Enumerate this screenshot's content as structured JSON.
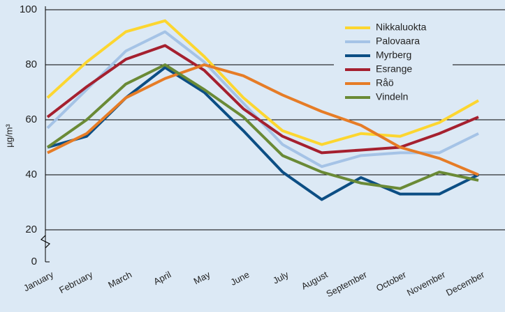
{
  "chart_data": {
    "type": "line",
    "y_label": "µg/m³",
    "categories": [
      "January",
      "February",
      "March",
      "April",
      "May",
      "June",
      "July",
      "August",
      "September",
      "October",
      "November",
      "December"
    ],
    "series": [
      {
        "name": "Nikkaluokta",
        "color": "#fcd630",
        "values": [
          68,
          81,
          92,
          96,
          83,
          68,
          56,
          51,
          55,
          54,
          59,
          67
        ]
      },
      {
        "name": "Palovaara",
        "color": "#a5c3e6",
        "values": [
          57,
          71,
          85,
          92,
          81,
          66,
          51,
          43,
          47,
          48,
          48,
          55
        ]
      },
      {
        "name": "Myrberg",
        "color": "#0c4e84",
        "values": [
          50,
          54,
          68,
          79,
          70,
          56,
          41,
          31,
          39,
          33,
          33,
          40
        ]
      },
      {
        "name": "Esrange",
        "color": "#a5202f",
        "values": [
          61,
          72,
          82,
          87,
          78,
          64,
          54,
          48,
          49,
          50,
          55,
          61
        ]
      },
      {
        "name": "Råö",
        "color": "#e67c26",
        "values": [
          48,
          55,
          68,
          75,
          80,
          76,
          69,
          63,
          58,
          50,
          46,
          40
        ]
      },
      {
        "name": "Vindeln",
        "color": "#6a8a36",
        "values": [
          50,
          60,
          73,
          80,
          71,
          61,
          47,
          41,
          37,
          35,
          41,
          38
        ]
      }
    ],
    "ylim": [
      0,
      100
    ],
    "yticks": [
      0,
      20,
      40,
      60,
      80,
      100
    ],
    "y_axis_break": [
      0,
      20
    ],
    "grid": true,
    "legend_position": "top-right"
  }
}
